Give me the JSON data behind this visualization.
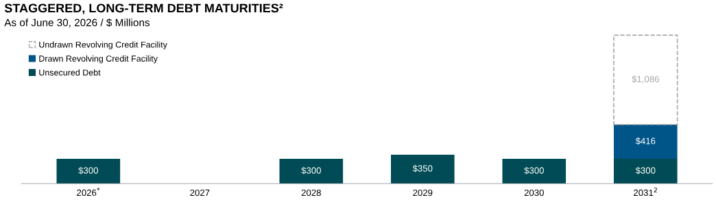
{
  "chart_data": {
    "type": "bar",
    "title": "STAGGERED, LONG-TERM DEBT MATURITIES²",
    "subtitle": "As of June 30, 2026 / $ Millions",
    "categories": [
      "2026$^{*}$",
      "2027",
      "2028",
      "2029",
      "2030",
      "2031$^{2}$"
    ],
    "stacked": true,
    "legend": "top left",
    "grid": false,
    "tick_labels": "x",
    "series": [
      {
        "name": "Unsecured Debt",
        "color": "#004b55",
        "values": [
          300,
          null,
          300,
          350,
          300,
          300
        ],
        "value_labels": [
          "$300",
          null,
          "$300",
          "$350",
          "$300",
          "$300"
        ]
      },
      {
        "name": "Drawn Revolving Credit Facility",
        "color": "#005588",
        "values": [
          null,
          null,
          null,
          null,
          null,
          416
        ],
        "value_labels": [
          null,
          null,
          null,
          null,
          null,
          "$416"
        ]
      },
      {
        "name": "Undrawn Revolving Credit Facility",
        "color": "#a6a6a6",
        "line_style": "dashed",
        "values": [
          null,
          null,
          null,
          null,
          null,
          1086
        ],
        "value_labels": [
          null,
          null,
          null,
          null,
          null,
          "$1,086"
        ]
      }
    ]
  }
}
